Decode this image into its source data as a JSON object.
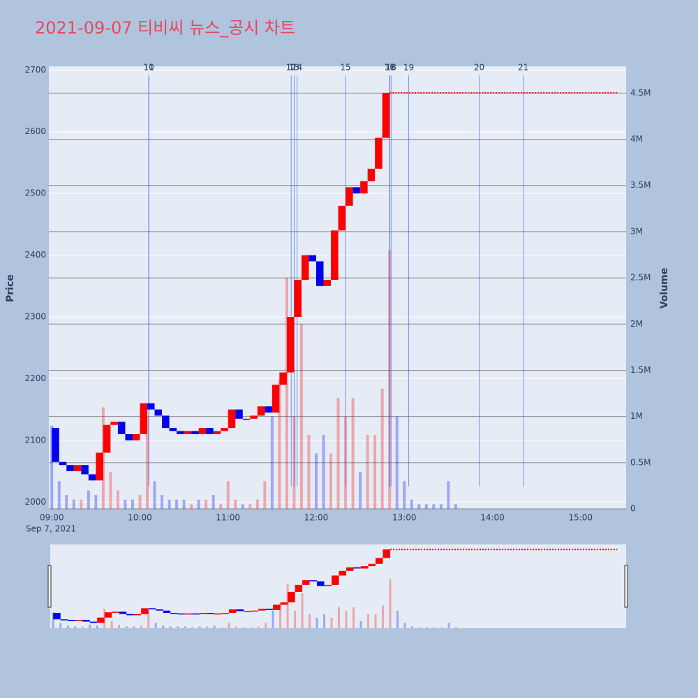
{
  "chart_data": {
    "type": "candlestick-volume",
    "title": "2021-09-07 티비씨 뉴스_공시 차트",
    "y_label": "Price",
    "y2_label": "Volume",
    "x_date_label": "Sep 7, 2021",
    "xlim": [
      "08:58",
      "15:31"
    ],
    "xticks": [
      "09:00",
      "10:00",
      "11:00",
      "12:00",
      "13:00",
      "14:00",
      "15:00"
    ],
    "ylim": [
      1989,
      2706
    ],
    "yticks": [
      2000,
      2100,
      2200,
      2300,
      2400,
      2500,
      2600,
      2700
    ],
    "y2lim": [
      0,
      4790000
    ],
    "y2ticks": [
      0,
      {
        "value": 500000,
        "label": "0.5M"
      },
      {
        "value": 1000000,
        "label": "1M"
      },
      {
        "value": 1500000,
        "label": "1.5M"
      },
      {
        "value": 2000000,
        "label": "2M"
      },
      {
        "value": 2500000,
        "label": "2.5M"
      },
      {
        "value": 3000000,
        "label": "3M"
      },
      {
        "value": 3500000,
        "label": "3.5M"
      },
      {
        "value": 4000000,
        "label": "4M"
      },
      {
        "value": 4500000,
        "label": "4.5M"
      }
    ],
    "up_color": "#ff0000",
    "down_color": "#0000ee",
    "price": {
      "name": "Price",
      "x": [
        "09:00",
        "09:05",
        "09:10",
        "09:15",
        "09:20",
        "09:25",
        "09:30",
        "09:35",
        "09:40",
        "09:45",
        "09:50",
        "09:55",
        "10:00",
        "10:05",
        "10:10",
        "10:15",
        "10:20",
        "10:25",
        "10:30",
        "10:35",
        "10:40",
        "10:45",
        "10:50",
        "10:55",
        "11:00",
        "11:05",
        "11:10",
        "11:15",
        "11:20",
        "11:25",
        "11:30",
        "11:35",
        "11:40",
        "11:45",
        "11:50",
        "11:55",
        "12:00",
        "12:05",
        "12:10",
        "12:15",
        "12:20",
        "12:25",
        "12:30",
        "12:35",
        "12:40",
        "12:45",
        "12:50",
        "15:25"
      ],
      "values": [
        2120,
        2065,
        2060,
        2050,
        2060,
        2045,
        2035,
        2080,
        2125,
        2130,
        2110,
        2100,
        2110,
        2160,
        2150,
        2140,
        2120,
        2115,
        2110,
        2115,
        2110,
        2120,
        2110,
        2115,
        2120,
        2150,
        2135,
        2135,
        2140,
        2155,
        2145,
        2190,
        2210,
        2300,
        2360,
        2400,
        2390,
        2350,
        2360,
        2440,
        2480,
        2510,
        2500,
        2520,
        2540,
        2590,
        2663,
        2663
      ]
    },
    "volume": {
      "name": "Volume",
      "x": [
        "09:00",
        "09:05",
        "09:10",
        "09:15",
        "09:20",
        "09:25",
        "09:30",
        "09:35",
        "09:40",
        "09:45",
        "09:50",
        "09:55",
        "10:00",
        "10:05",
        "10:10",
        "10:15",
        "10:20",
        "10:25",
        "10:30",
        "10:35",
        "10:40",
        "10:45",
        "10:50",
        "10:55",
        "11:00",
        "11:05",
        "11:10",
        "11:15",
        "11:20",
        "11:25",
        "11:30",
        "11:35",
        "11:40",
        "11:45",
        "11:50",
        "11:55",
        "12:00",
        "12:05",
        "12:10",
        "12:15",
        "12:20",
        "12:25",
        "12:30",
        "12:35",
        "12:40",
        "12:45",
        "12:50",
        "12:55",
        "13:00",
        "13:05",
        "13:10",
        "13:15",
        "13:20",
        "13:25",
        "13:30",
        "13:35"
      ],
      "values": [
        900000,
        300000,
        150000,
        100000,
        100000,
        200000,
        150000,
        1100000,
        400000,
        200000,
        100000,
        100000,
        150000,
        1000000,
        300000,
        150000,
        100000,
        100000,
        100000,
        50000,
        100000,
        100000,
        150000,
        50000,
        300000,
        100000,
        50000,
        50000,
        100000,
        300000,
        1000000,
        1400000,
        2500000,
        1000000,
        2000000,
        800000,
        600000,
        800000,
        600000,
        1200000,
        1000000,
        1200000,
        400000,
        800000,
        800000,
        1300000,
        2800000,
        1000000,
        300000,
        100000,
        50000,
        50000,
        50000,
        50000,
        300000,
        50000
      ]
    },
    "news": [
      {
        "label": "10",
        "time": "10:06"
      },
      {
        "label": "11",
        "time": "10:06"
      },
      {
        "label": "12",
        "time": "11:43"
      },
      {
        "label": "13",
        "time": "11:45"
      },
      {
        "label": "14",
        "time": "11:47"
      },
      {
        "label": "15",
        "time": "12:20"
      },
      {
        "label": "16",
        "time": "12:50"
      },
      {
        "label": "17",
        "time": "12:50"
      },
      {
        "label": "18",
        "time": "12:51"
      },
      {
        "label": "19",
        "time": "13:03"
      },
      {
        "label": "20",
        "time": "13:51"
      },
      {
        "label": "21",
        "time": "14:21"
      }
    ]
  }
}
